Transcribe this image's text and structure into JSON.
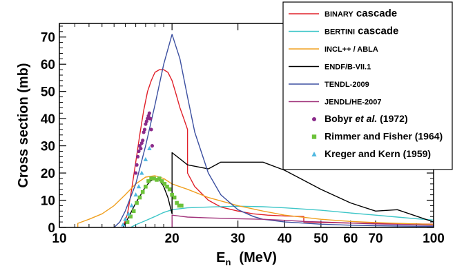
{
  "chart_data": {
    "type": "line",
    "xlabel_main": "E",
    "xlabel_sub": "n",
    "xlabel_units": "(MeV)",
    "ylabel": "Cross section  (mb)",
    "x_scale": "log",
    "xlim": [
      10,
      100
    ],
    "ylim": [
      0,
      75
    ],
    "x_ticks": [
      10,
      20,
      30,
      40,
      50,
      60,
      70,
      100
    ],
    "y_ticks": [
      0,
      10,
      20,
      30,
      40,
      50,
      60,
      70
    ],
    "legend_position": "top-right",
    "series": [
      {
        "name": "BINARY",
        "name_suffix": "cascade",
        "color": "#e0202a",
        "kind": "line",
        "x": [
          14.8,
          15.2,
          15.6,
          16.0,
          16.4,
          16.8,
          17.2,
          17.6,
          18.0,
          18.5,
          19.0,
          19.5,
          20.0,
          20.5,
          21.0,
          21.5,
          22.0,
          22.0,
          23.0,
          25.0,
          27.0,
          30.0,
          33.0,
          36.0,
          40.0,
          45.0,
          45.0,
          50.0,
          60.0,
          70.0,
          80.0,
          90.0,
          100.0
        ],
        "y": [
          0,
          5,
          14,
          24,
          34,
          43,
          50,
          54,
          57,
          58,
          58,
          57,
          54,
          49,
          44,
          40,
          36,
          20,
          15,
          10,
          7.5,
          6,
          5,
          4.5,
          4.2,
          4.0,
          2.0,
          1.8,
          1.6,
          1.5,
          1.4,
          1.3,
          1.2
        ]
      },
      {
        "name": "BERTINI",
        "name_suffix": "cascade",
        "color": "#3ec6c8",
        "kind": "line",
        "x": [
          15.5,
          16.0,
          17.0,
          18.0,
          19.0,
          20.0,
          22.0,
          25.0,
          30.0,
          35.0,
          40.0,
          50.0,
          60.0,
          70.0,
          80.0,
          90.0,
          100.0
        ],
        "y": [
          0,
          1.0,
          2.5,
          4.0,
          5.5,
          6.5,
          7.2,
          7.5,
          7.8,
          7.6,
          7.2,
          6.3,
          5.3,
          4.5,
          3.8,
          3.2,
          2.7
        ]
      },
      {
        "name": "INCL++ / ABLA",
        "color": "#f0a020",
        "kind": "line",
        "x": [
          11.2,
          11.2,
          12.0,
          13.0,
          14.0,
          15.0,
          16.0,
          17.0,
          18.0,
          19.0,
          20.0,
          22.0,
          25.0,
          30.0,
          35.0,
          40.0,
          50.0,
          60.0,
          70.0,
          80.0,
          100.0
        ],
        "y": [
          0,
          1.5,
          3.0,
          5.0,
          8.0,
          12.0,
          16.0,
          18.5,
          19.0,
          18.0,
          16.0,
          14.0,
          11.0,
          8.0,
          6.0,
          4.5,
          3.0,
          2.2,
          1.8,
          1.5,
          1.1
        ]
      },
      {
        "name": "ENDF/B-VII.1",
        "color": "#000000",
        "kind": "line",
        "x": [
          14.8,
          15.2,
          15.6,
          16.0,
          16.5,
          17.0,
          17.5,
          18.0,
          18.5,
          19.0,
          19.5,
          20.0,
          20.0,
          22.0,
          25.0,
          27.0,
          30.0,
          35.0,
          40.0,
          50.0,
          60.0,
          70.0,
          80.0,
          100.0
        ],
        "y": [
          0,
          3.0,
          6.0,
          9.0,
          12.0,
          15.0,
          17.0,
          18.0,
          17.5,
          15.0,
          11.0,
          5.0,
          27.5,
          23.0,
          21.5,
          24.0,
          24.0,
          24.0,
          21.0,
          14.0,
          9.0,
          6.0,
          6.5,
          2.0
        ]
      },
      {
        "name": "TENDL-2009",
        "color": "#3b4fa0",
        "kind": "line",
        "x": [
          14.0,
          14.5,
          15.0,
          16.0,
          17.0,
          18.0,
          19.0,
          20.0,
          21.0,
          22.0,
          23.0,
          25.0,
          27.0,
          30.0,
          33.0,
          35.0,
          40.0,
          50.0,
          60.0,
          70.0,
          80.0,
          100.0
        ],
        "y": [
          0,
          2.0,
          6.0,
          16.0,
          30.0,
          45.0,
          60.0,
          71.0,
          62.0,
          48.0,
          35.0,
          20.0,
          12.0,
          6.5,
          4.0,
          3.0,
          2.0,
          1.2,
          0.8,
          0.6,
          0.5,
          0.4
        ]
      },
      {
        "name": "JENDL/HE-2007",
        "color": "#a0327a",
        "kind": "line",
        "x": [
          20.0,
          20.0,
          22.0,
          25.0,
          30.0,
          35.0,
          40.0,
          45.0,
          50.0,
          60.0,
          70.0,
          80.0,
          100.0
        ],
        "y": [
          0,
          4.5,
          3.8,
          3.5,
          3.2,
          3.0,
          2.6,
          2.2,
          2.0,
          1.6,
          1.3,
          1.1,
          0.8
        ]
      },
      {
        "name": "Bobyr",
        "name_italic": "et al.",
        "name_suffix": "(1972)",
        "color": "#8a2a8a",
        "kind": "circle",
        "x": [
          16.0,
          16.1,
          16.2,
          16.3,
          16.4,
          16.5,
          16.6,
          16.7,
          16.8,
          16.9,
          17.0,
          17.1,
          17.2,
          17.3,
          17.4,
          17.5,
          17.6,
          17.7
        ],
        "y": [
          20,
          23,
          26,
          28,
          30,
          29,
          31,
          32,
          35,
          36,
          38,
          39,
          40,
          41,
          42,
          40,
          36,
          30
        ]
      },
      {
        "name": "Rimmer and Fisher (1964)",
        "color": "#6cc23a",
        "kind": "square",
        "x": [
          15.2,
          15.5,
          15.8,
          16.1,
          16.4,
          16.7,
          17.0,
          17.3,
          17.6,
          17.9,
          18.2,
          18.5,
          18.8,
          19.1,
          19.4,
          19.7,
          20.0,
          20.3,
          20.6,
          20.9,
          21.2
        ],
        "y": [
          2,
          4,
          6,
          9,
          11,
          13,
          15,
          17,
          18,
          18,
          17.5,
          18,
          17,
          16,
          15,
          14,
          12,
          11,
          9,
          8,
          8
        ]
      },
      {
        "name": "Kreger and Kern (1959)",
        "color": "#4fb8e0",
        "kind": "triangle",
        "x": [
          14.8,
          15.0,
          15.3,
          15.6,
          16.0,
          16.3,
          16.6,
          17.0,
          17.4
        ],
        "y": [
          1,
          3,
          5,
          8,
          12,
          15,
          20,
          25,
          29
        ]
      }
    ]
  }
}
